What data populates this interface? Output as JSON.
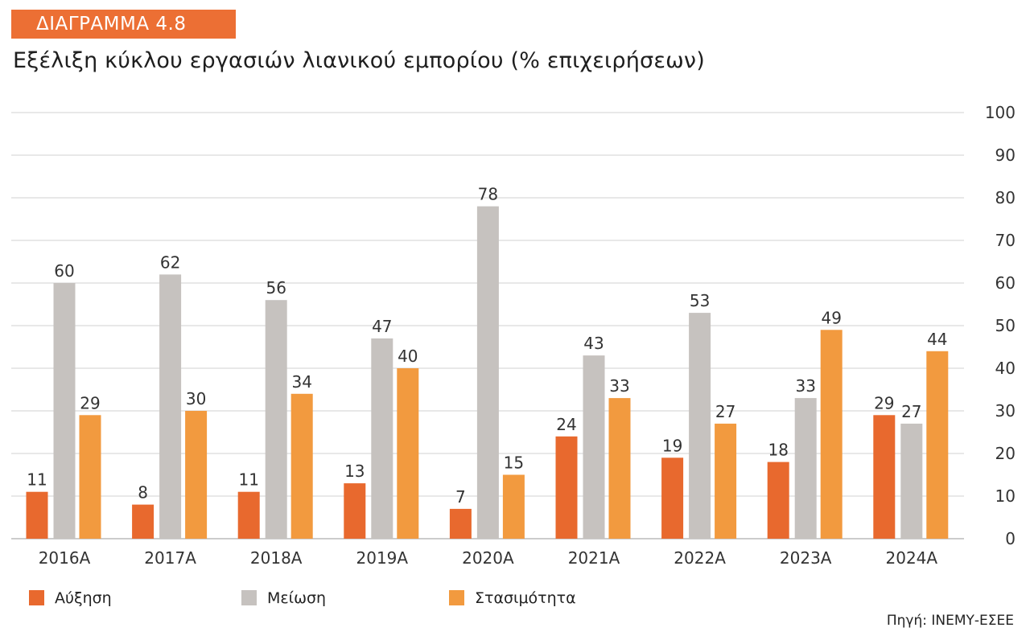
{
  "header": {
    "badge": "ΔΙΑΓΡΑΜΜΑ 4.8",
    "title": "Εξέλιξη κύκλου εργασιών λιανικού εμπορίου (% επιχειρήσεων)"
  },
  "source": "Πηγή: ΙΝΕΜΥ-ΕΣΕΕ",
  "chart_data": {
    "type": "bar",
    "title": "Εξέλιξη κύκλου εργασιών λιανικού εμπορίου (% επιχειρήσεων)",
    "categories": [
      "2016Α",
      "2017Α",
      "2018Α",
      "2019Α",
      "2020Α",
      "2021Α",
      "2022Α",
      "2023Α",
      "2024Α"
    ],
    "series": [
      {
        "name": "Αύξηση",
        "color": "#e8692e",
        "values": [
          11,
          8,
          11,
          13,
          7,
          24,
          19,
          18,
          29
        ]
      },
      {
        "name": "Μείωση",
        "color": "#c6c2bf",
        "values": [
          60,
          62,
          56,
          47,
          78,
          43,
          53,
          33,
          27
        ]
      },
      {
        "name": "Στασιμότητα",
        "color": "#f29a3f",
        "values": [
          29,
          30,
          34,
          40,
          15,
          33,
          27,
          49,
          44
        ]
      }
    ],
    "yticks": [
      0,
      10,
      20,
      30,
      40,
      50,
      60,
      70,
      80,
      90,
      100
    ],
    "ylim": [
      0,
      100
    ],
    "y_axis_side": "right",
    "grid": true,
    "legend_position": "bottom-left"
  }
}
